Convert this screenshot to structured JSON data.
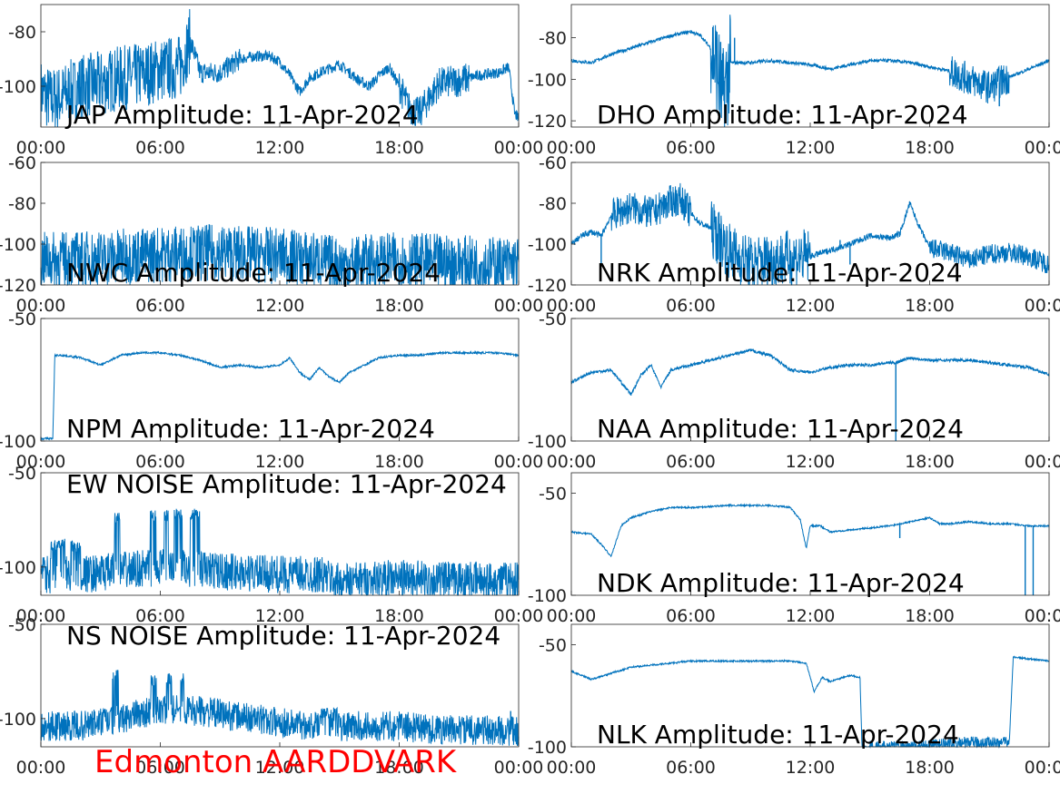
{
  "footer": "Edmonton AARDDVARK",
  "style": {
    "line_color": "#0072bd",
    "footer_color": "#ff0000"
  },
  "xticks": [
    "00:00",
    "06:00",
    "12:00",
    "18:00",
    "00:00"
  ],
  "chart_data": [
    {
      "type": "line",
      "title": "JAP Amplitude: 11-Apr-2024",
      "ylim": [
        -115,
        -70
      ],
      "yticks": [
        -80,
        -100
      ],
      "ytick_labels": [
        "-80",
        "-100"
      ],
      "noise": 2.0,
      "series": [
        {
          "x": [
            0,
            0.5,
            1,
            2,
            3,
            4,
            5,
            6,
            7,
            7.5,
            8,
            9,
            10,
            10.8,
            11.5,
            12,
            12.5,
            13,
            13.5,
            14,
            15,
            16,
            16.5,
            17,
            17.5,
            18,
            18.5,
            19,
            20,
            21,
            22,
            23,
            23.5,
            23.8,
            24
          ],
          "y": [
            -102,
            -105,
            -104,
            -100,
            -99,
            -97,
            -96,
            -94,
            -93,
            -83,
            -95,
            -95,
            -90,
            -89,
            -89,
            -91,
            -96,
            -102,
            -97,
            -95,
            -92,
            -98,
            -100,
            -96,
            -93,
            -100,
            -108,
            -110,
            -99,
            -98,
            -96,
            -95,
            -93,
            -110,
            -112
          ]
        }
      ],
      "noise_bands": [
        [
          0,
          7.5,
          12
        ],
        [
          7.5,
          10,
          4
        ],
        [
          18,
          21.5,
          6
        ]
      ],
      "spikes": [
        [
          7.6,
          -83
        ],
        [
          23.9,
          -112
        ]
      ]
    },
    {
      "type": "line",
      "title": "DHO Amplitude: 11-Apr-2024",
      "ylim": [
        -123,
        -64
      ],
      "yticks": [
        -80,
        -100,
        -120
      ],
      "ytick_labels": [
        "-80",
        "-100",
        "-120"
      ],
      "noise": 0.8,
      "series": [
        {
          "x": [
            0,
            1,
            2,
            3,
            4,
            5,
            6,
            6.5,
            7,
            7.3,
            7.6,
            8,
            9,
            10,
            11,
            12,
            13,
            14,
            15,
            16,
            17,
            18,
            19,
            20,
            21,
            22,
            23,
            24
          ],
          "y": [
            -91,
            -92,
            -88,
            -85,
            -82,
            -79,
            -77,
            -79,
            -85,
            -93,
            -110,
            -92,
            -92,
            -91,
            -92,
            -93,
            -95,
            -93,
            -91,
            -91,
            -92,
            -94,
            -96,
            -100,
            -104,
            -99,
            -95,
            -91
          ]
        }
      ],
      "noise_bands": [
        [
          7,
          8,
          25
        ],
        [
          19,
          22,
          8
        ]
      ],
      "spikes": [
        [
          7.1,
          -82
        ],
        [
          7.5,
          -82
        ],
        [
          8.2,
          -80
        ],
        [
          21.5,
          -113
        ]
      ]
    },
    {
      "type": "line",
      "title": "NWC Amplitude: 11-Apr-2024",
      "ylim": [
        -120,
        -60
      ],
      "yticks": [
        -60,
        -80,
        -100,
        -120
      ],
      "ytick_labels": [
        "-60",
        "-80",
        "-100",
        "-120"
      ],
      "noise": 3.0,
      "series": [
        {
          "x": [
            0,
            3,
            6,
            9,
            12,
            14,
            15,
            18,
            20,
            22,
            24
          ],
          "y": [
            -108,
            -107,
            -105,
            -104,
            -106,
            -108,
            -110,
            -108,
            -109,
            -110,
            -110
          ]
        }
      ],
      "noise_bands": [
        [
          0,
          24,
          14
        ]
      ],
      "spikes": []
    },
    {
      "type": "line",
      "title": "NRK Amplitude: 11-Apr-2024",
      "ylim": [
        -120,
        -60
      ],
      "yticks": [
        -60,
        -80,
        -100,
        -120
      ],
      "ytick_labels": [
        "-60",
        "-80",
        "-100",
        "-120"
      ],
      "noise": 1.5,
      "series": [
        {
          "x": [
            0,
            0.5,
            1,
            1.5,
            2,
            2.5,
            3,
            4,
            5,
            5.5,
            6,
            6.5,
            7,
            8,
            9,
            10,
            12,
            14,
            15,
            16,
            16.5,
            17,
            17.5,
            18,
            19,
            20,
            21,
            22,
            23,
            24
          ],
          "y": [
            -100,
            -96,
            -94,
            -96,
            -86,
            -84,
            -82,
            -85,
            -79,
            -78,
            -85,
            -90,
            -92,
            -104,
            -110,
            -108,
            -106,
            -100,
            -96,
            -97,
            -95,
            -80,
            -92,
            -102,
            -104,
            -108,
            -105,
            -104,
            -106,
            -110
          ]
        }
      ],
      "noise_bands": [
        [
          7,
          12,
          14
        ],
        [
          2,
          6,
          8
        ],
        [
          18,
          24,
          5
        ]
      ],
      "spikes": [
        [
          1.5,
          -110
        ],
        [
          14,
          -110
        ],
        [
          13.5,
          -98
        ]
      ]
    },
    {
      "type": "line",
      "title": "NPM Amplitude: 11-Apr-2024",
      "ylim": [
        -100,
        -50
      ],
      "yticks": [
        -50,
        -100
      ],
      "ytick_labels": [
        "-50",
        "-100"
      ],
      "noise": 0.4,
      "series": [
        {
          "x": [
            0,
            0.6,
            0.7,
            1,
            2,
            3,
            4,
            5,
            6,
            7,
            8,
            9,
            10,
            11,
            12,
            12.5,
            13,
            13.5,
            14,
            14.5,
            15,
            15.5,
            16,
            16.5,
            17,
            18,
            19,
            20,
            21,
            22,
            23,
            24
          ],
          "y": [
            -99,
            -99,
            -65,
            -65,
            -66,
            -69,
            -65,
            -64,
            -64,
            -65,
            -67,
            -70,
            -69,
            -70,
            -69,
            -66,
            -72,
            -75,
            -70,
            -74,
            -76,
            -72,
            -70,
            -68,
            -66,
            -65,
            -65,
            -64,
            -64,
            -64,
            -64,
            -65
          ]
        }
      ],
      "noise_bands": [],
      "spikes": []
    },
    {
      "type": "line",
      "title": "NAA Amplitude: 11-Apr-2024",
      "ylim": [
        -100,
        -50
      ],
      "yticks": [
        -50,
        -100
      ],
      "ytick_labels": [
        "-50",
        "-100"
      ],
      "noise": 0.6,
      "series": [
        {
          "x": [
            0,
            1,
            2,
            2.5,
            3,
            3.5,
            4,
            4.5,
            5,
            6,
            7,
            8,
            9,
            10,
            11,
            12,
            13,
            14,
            15,
            16,
            16.3,
            17,
            18,
            19,
            20,
            21,
            22,
            23,
            24
          ],
          "y": [
            -76,
            -72,
            -71,
            -76,
            -81,
            -73,
            -69,
            -78,
            -71,
            -69,
            -67,
            -65,
            -63,
            -65,
            -71,
            -72,
            -70,
            -69,
            -69,
            -68,
            -68,
            -66,
            -67,
            -67,
            -67,
            -68,
            -69,
            -70,
            -73
          ]
        }
      ],
      "noise_bands": [],
      "spikes": [
        [
          16.3,
          -100
        ]
      ]
    },
    {
      "type": "line",
      "title": "EW NOISE Amplitude: 11-Apr-2024",
      "ylim": [
        -115,
        -50
      ],
      "yticks": [
        -50,
        -100
      ],
      "ytick_labels": [
        "-50",
        "-100"
      ],
      "noise": 2.0,
      "series": [
        {
          "x": [
            0,
            2,
            4,
            6,
            8,
            10,
            12,
            14,
            15,
            16,
            18,
            20,
            22,
            24
          ],
          "y": [
            -104,
            -104,
            -102,
            -100,
            -101,
            -103,
            -104,
            -104,
            -108,
            -107,
            -106,
            -107,
            -107,
            -107
          ]
        }
      ],
      "noise_bands": [
        [
          0,
          24,
          10
        ]
      ],
      "bursts": [
        [
          0.5,
          1.2,
          -88
        ],
        [
          1.5,
          2,
          -89
        ],
        [
          3.7,
          4,
          -74
        ],
        [
          5.5,
          5.8,
          -73
        ],
        [
          6.2,
          6.4,
          -73
        ],
        [
          6.7,
          7.1,
          -72
        ],
        [
          7.5,
          8,
          -72
        ]
      ],
      "spikes": []
    },
    {
      "type": "line",
      "title": "NDK Amplitude: 11-Apr-2024",
      "ylim": [
        -100,
        -40
      ],
      "yticks": [
        -50,
        -100
      ],
      "ytick_labels": [
        "-50",
        "-100"
      ],
      "noise": 0.4,
      "series": [
        {
          "x": [
            0,
            1,
            1.5,
            2,
            2.5,
            3,
            4,
            5,
            6,
            8,
            10,
            11,
            11.5,
            11.8,
            12,
            12.5,
            13,
            14,
            15,
            16,
            17,
            18,
            18.5,
            19,
            20,
            21,
            22,
            23,
            24
          ],
          "y": [
            -69,
            -70,
            -75,
            -81,
            -66,
            -62,
            -59,
            -57,
            -57,
            -56,
            -56,
            -57,
            -63,
            -77,
            -66,
            -66,
            -69,
            -68,
            -67,
            -66,
            -64,
            -62,
            -65,
            -65,
            -64,
            -65,
            -65,
            -66,
            -66
          ]
        }
      ],
      "noise_bands": [],
      "spikes": [
        [
          16.5,
          -72
        ],
        [
          22.8,
          -100
        ],
        [
          23.2,
          -100
        ]
      ]
    },
    {
      "type": "line",
      "title": "NS NOISE Amplitude: 11-Apr-2024",
      "ylim": [
        -115,
        -50
      ],
      "yticks": [
        -50,
        -100
      ],
      "ytick_labels": [
        "-50",
        "-100"
      ],
      "noise": 2.0,
      "series": [
        {
          "x": [
            0,
            2,
            4,
            6,
            8,
            10,
            12,
            14,
            15,
            16,
            18,
            20,
            22,
            24
          ],
          "y": [
            -104,
            -104,
            -100,
            -95,
            -96,
            -99,
            -102,
            -104,
            -105,
            -104,
            -104,
            -106,
            -106,
            -107
          ]
        }
      ],
      "noise_bands": [
        [
          0,
          24,
          8
        ]
      ],
      "bursts": [
        [
          3.6,
          3.9,
          -77
        ],
        [
          5.5,
          5.8,
          -80
        ],
        [
          6.3,
          6.6,
          -79
        ],
        [
          7,
          7.2,
          -79
        ],
        [
          14,
          15,
          -97
        ]
      ],
      "spikes": [
        [
          23.6,
          -96
        ]
      ]
    },
    {
      "type": "line",
      "title": "NLK Amplitude: 11-Apr-2024",
      "ylim": [
        -100,
        -40
      ],
      "yticks": [
        -50,
        -100
      ],
      "ytick_labels": [
        "-50",
        "-100"
      ],
      "noise": 0.4,
      "series": [
        {
          "x": [
            0,
            1,
            2,
            3,
            4,
            5,
            6,
            8,
            10,
            11,
            11.8,
            12.2,
            12.6,
            13,
            14,
            14.5,
            14.6,
            17,
            20,
            22,
            22.2,
            23,
            24
          ],
          "y": [
            -63,
            -67,
            -64,
            -61,
            -60,
            -59,
            -58,
            -58,
            -58,
            -58,
            -59,
            -73,
            -66,
            -68,
            -65,
            -66,
            -100,
            -100,
            -98,
            -98,
            -56,
            -57,
            -58
          ]
        }
      ],
      "noise_bands": [
        [
          15,
          22,
          3
        ]
      ],
      "spikes": []
    }
  ]
}
